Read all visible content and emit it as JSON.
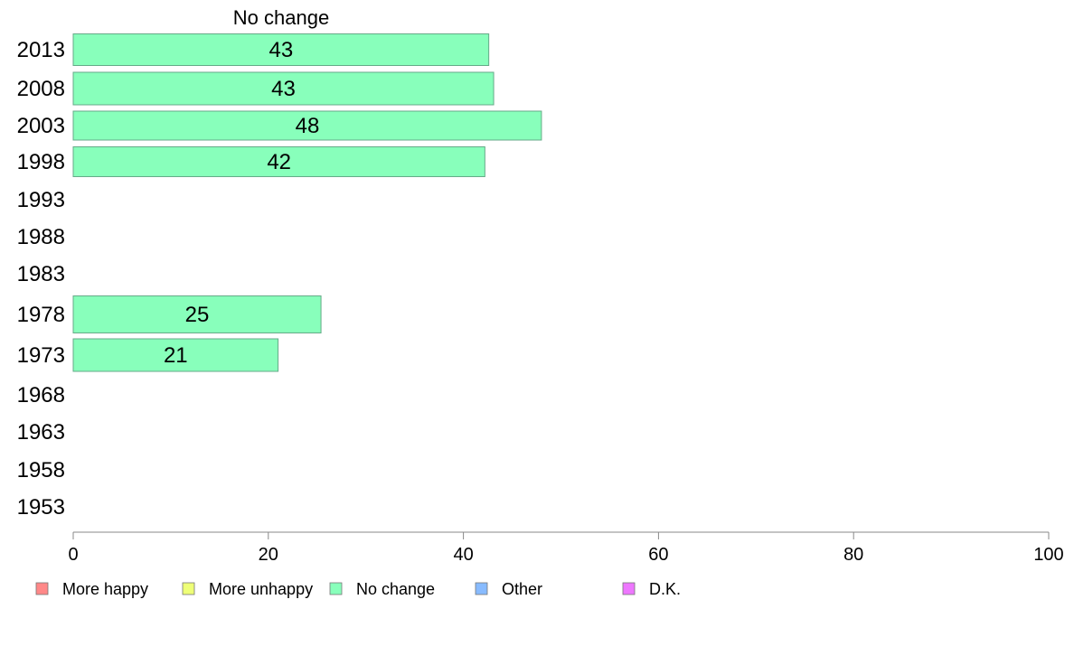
{
  "chart_data": {
    "type": "bar",
    "orientation": "horizontal",
    "title": "No change",
    "categories": [
      "2013",
      "2008",
      "2003",
      "1998",
      "1993",
      "1988",
      "1983",
      "1978",
      "1973",
      "1968",
      "1963",
      "1958",
      "1953"
    ],
    "series": [
      {
        "name": "No change",
        "color": "#88ffbb",
        "values": [
          42.6,
          43.1,
          48.0,
          42.2,
          null,
          null,
          null,
          25.4,
          21.0,
          null,
          null,
          null,
          null
        ],
        "labels": [
          "43",
          "43",
          "48",
          "42",
          "",
          "",
          "",
          "25",
          "21",
          "",
          "",
          "",
          ""
        ]
      }
    ],
    "xlim": [
      0,
      100
    ],
    "xticks": [
      "0",
      "20",
      "40",
      "60",
      "80",
      "100"
    ],
    "grid": false,
    "legend_position": "bottom",
    "legend": [
      {
        "label": "More happy",
        "color": "#ff8888"
      },
      {
        "label": "More unhappy",
        "color": "#eeff77"
      },
      {
        "label": "No change",
        "color": "#88ffbb"
      },
      {
        "label": "Other",
        "color": "#88bbff"
      },
      {
        "label": "D.K.",
        "color": "#ee77ff"
      }
    ]
  }
}
